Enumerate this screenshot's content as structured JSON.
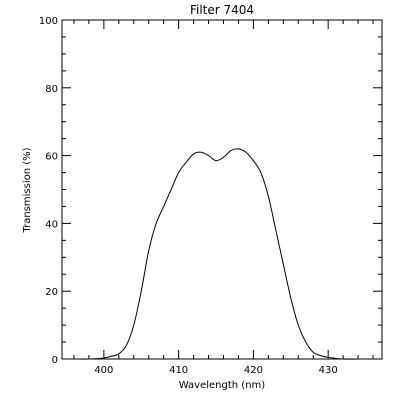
{
  "chart_data": {
    "type": "line",
    "title": "Filter 7404",
    "xlabel": "Wavelength (nm)",
    "ylabel": "Transmission (%)",
    "xlim": [
      394.4,
      437.2
    ],
    "ylim": [
      0,
      100
    ],
    "xticks": [
      400,
      410,
      420,
      430
    ],
    "xtick_labels": [
      "400",
      "410",
      "420",
      "430"
    ],
    "xminor_step": 2,
    "yticks": [
      0,
      20,
      40,
      60,
      80,
      100
    ],
    "ytick_labels": [
      "0",
      "20",
      "40",
      "60",
      "80",
      "100"
    ],
    "yminor_step": 5,
    "grid": false,
    "series": [
      {
        "color": "#000000",
        "x": [
          394.4,
          396,
          398,
          400,
          401,
          402,
          403,
          404,
          405,
          406,
          407,
          408,
          409,
          410,
          411,
          412,
          413,
          414,
          415,
          416,
          417,
          418,
          419,
          420,
          421,
          422,
          423,
          424,
          425,
          426,
          427,
          428,
          429,
          430,
          432,
          434,
          437.2
        ],
        "y": [
          0,
          0,
          0,
          0.3,
          0.8,
          1.5,
          4,
          10,
          20,
          32,
          40,
          45,
          50,
          55,
          58,
          60.5,
          61,
          60,
          58.5,
          59.5,
          61.5,
          62,
          61,
          58.5,
          55,
          48,
          38,
          28,
          18,
          10,
          5,
          2,
          1,
          0.5,
          0,
          0,
          0
        ]
      }
    ]
  }
}
